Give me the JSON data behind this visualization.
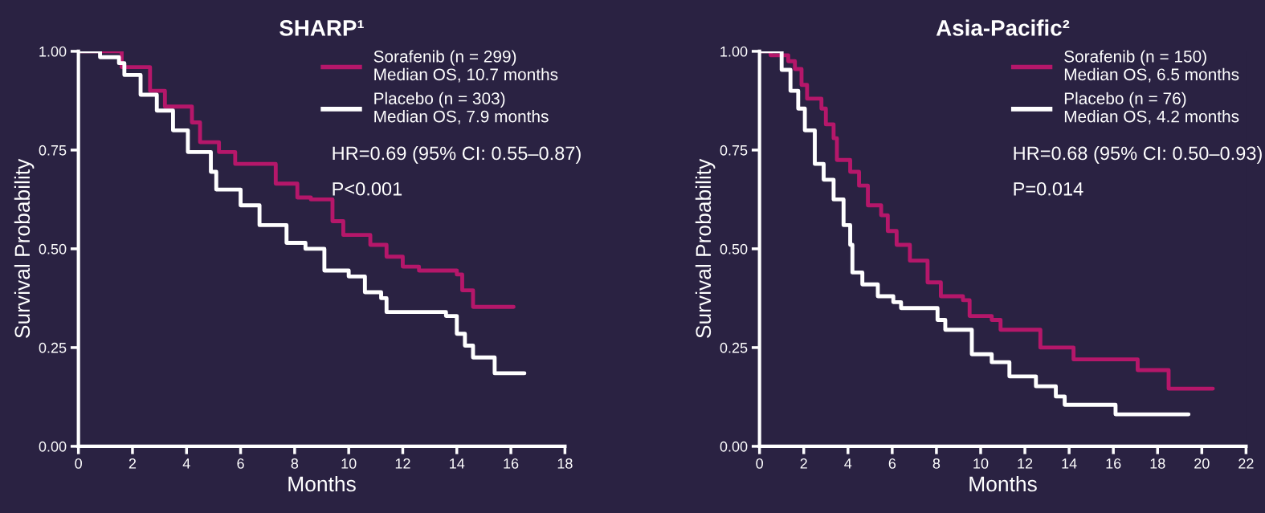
{
  "chart_data": [
    {
      "type": "step",
      "title": "SHARP¹",
      "xlabel": "Months",
      "ylabel": "Survival Probability",
      "xlim": [
        0,
        18
      ],
      "xticks": [
        0,
        2,
        4,
        6,
        8,
        10,
        12,
        14,
        16,
        18
      ],
      "ylim": [
        0,
        1
      ],
      "yticks": [
        {
          "value": 0,
          "label": "0.00"
        },
        {
          "value": 0.25,
          "label": "0.25"
        },
        {
          "value": 0.5,
          "label": "0.50"
        },
        {
          "value": 0.75,
          "label": "0.75"
        },
        {
          "value": 1,
          "label": "1.00"
        }
      ],
      "legend": "top right",
      "grid": false,
      "annotations": [
        "Median OS, 10.7 months",
        "Median OS, 7.9 months",
        "HR=0.69 (95% CI: 0.55–0.87)",
        "P<0.001"
      ],
      "series": [
        {
          "name": "Sorafenib (n = 299)",
          "color": "#b5176a",
          "x": [
            0,
            0.8,
            1.6,
            2.65,
            3.2,
            4.2,
            4.5,
            5.2,
            5.8,
            6.3,
            7.3,
            8.1,
            8.6,
            9.4,
            9.8,
            10.8,
            11.4,
            12.0,
            12.6,
            14.0,
            14.2,
            14.6,
            16.1
          ],
          "values": [
            1.0,
            1.0,
            0.96,
            0.9,
            0.86,
            0.82,
            0.77,
            0.745,
            0.715,
            0.715,
            0.665,
            0.63,
            0.625,
            0.57,
            0.535,
            0.51,
            0.48,
            0.455,
            0.445,
            0.435,
            0.395,
            0.353,
            0.353
          ]
        },
        {
          "name": "Placebo (n = 303)",
          "color": "#ffffff",
          "x": [
            0,
            0.8,
            1.5,
            1.7,
            2.3,
            2.9,
            3.5,
            4.05,
            4.9,
            5.1,
            6.0,
            6.7,
            7.7,
            8.4,
            9.1,
            10.0,
            10.6,
            11.2,
            11.4,
            13.6,
            14.0,
            14.3,
            14.6,
            15.4,
            16.5
          ],
          "values": [
            1.0,
            0.985,
            0.97,
            0.94,
            0.89,
            0.85,
            0.8,
            0.745,
            0.695,
            0.65,
            0.61,
            0.56,
            0.515,
            0.5,
            0.445,
            0.43,
            0.39,
            0.375,
            0.34,
            0.33,
            0.285,
            0.255,
            0.225,
            0.185,
            0.185
          ]
        }
      ]
    },
    {
      "type": "step",
      "title": "Asia-Pacific²",
      "xlabel": "Months",
      "ylabel": "Survival Probability",
      "xlim": [
        0,
        22
      ],
      "xticks": [
        0,
        2,
        4,
        6,
        8,
        10,
        12,
        14,
        16,
        18,
        20,
        22
      ],
      "ylim": [
        0,
        1
      ],
      "yticks": [
        {
          "value": 0,
          "label": "0.00"
        },
        {
          "value": 0.25,
          "label": "0.25"
        },
        {
          "value": 0.5,
          "label": "0.50"
        },
        {
          "value": 0.75,
          "label": "0.75"
        },
        {
          "value": 1,
          "label": "1.00"
        }
      ],
      "legend": "top right",
      "grid": false,
      "annotations": [
        "Median OS, 6.5 months",
        "Median OS, 4.2 months",
        "HR=0.68 (95% CI: 0.50–0.93)",
        "P=0.014"
      ],
      "series": [
        {
          "name": "Sorafenib (n = 150)",
          "color": "#b5176a",
          "x": [
            0,
            0.5,
            1.3,
            1.6,
            1.9,
            2.15,
            2.8,
            3.0,
            3.35,
            3.5,
            4.1,
            4.5,
            4.9,
            5.5,
            5.8,
            6.2,
            6.8,
            7.3,
            7.6,
            8.2,
            9.2,
            9.5,
            10.5,
            10.9,
            12.5,
            12.7,
            13.7,
            14.2,
            17.0,
            17.1,
            18.5,
            18.5,
            20.5
          ],
          "values": [
            1.0,
            0.99,
            0.975,
            0.955,
            0.915,
            0.88,
            0.855,
            0.815,
            0.78,
            0.725,
            0.695,
            0.66,
            0.61,
            0.585,
            0.545,
            0.51,
            0.47,
            0.47,
            0.415,
            0.38,
            0.37,
            0.33,
            0.32,
            0.295,
            0.295,
            0.25,
            0.25,
            0.22,
            0.22,
            0.193,
            0.193,
            0.146,
            0.146
          ]
        },
        {
          "name": "Placebo (n = 76)",
          "color": "#ffffff",
          "x": [
            0,
            0.85,
            1.0,
            1.4,
            1.75,
            2.05,
            2.5,
            2.9,
            3.35,
            3.8,
            4.1,
            4.2,
            4.65,
            5.35,
            6.05,
            6.4,
            7.8,
            8.05,
            8.4,
            9.4,
            9.6,
            10.5,
            11.3,
            12.5,
            13.4,
            13.8,
            16.0,
            16.1,
            19.4
          ],
          "values": [
            1.0,
            1.0,
            0.953,
            0.9,
            0.855,
            0.8,
            0.715,
            0.675,
            0.625,
            0.56,
            0.51,
            0.44,
            0.41,
            0.38,
            0.365,
            0.35,
            0.35,
            0.32,
            0.295,
            0.295,
            0.233,
            0.213,
            0.177,
            0.152,
            0.126,
            0.105,
            0.105,
            0.081,
            0.081
          ]
        }
      ]
    }
  ]
}
